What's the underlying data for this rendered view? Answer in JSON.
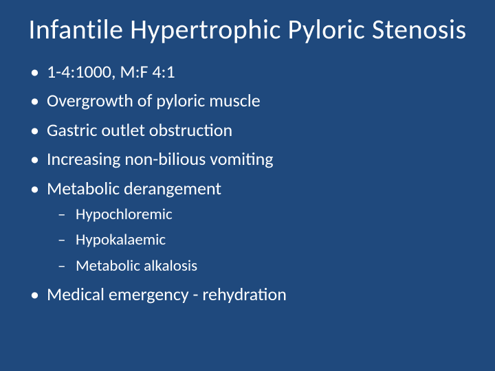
{
  "title": "Infantile Hypertrophic Pyloric Stenosis",
  "bullets": {
    "b1": "1-4:1000, M:F 4:1",
    "b2": "Overgrowth of pyloric muscle",
    "b3": "Gastric outlet obstruction",
    "b4": "Increasing non-bilious vomiting",
    "b5": "Metabolic derangement",
    "b5_sub": {
      "s1": "Hypochloremic",
      "s2": "Hypokalaemic",
      "s3": "Metabolic alkalosis"
    },
    "b6": "Medical emergency - rehydration"
  },
  "colors": {
    "background": "#1f497d",
    "text": "#ffffff"
  },
  "fonts": {
    "title_size_pt": 40,
    "bullet_size_pt": 26,
    "sub_bullet_size_pt": 23,
    "weight": 300,
    "family": "Calibri"
  }
}
